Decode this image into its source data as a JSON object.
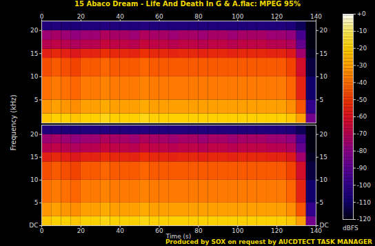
{
  "title": "15 Abaco Dream - Life And Death In G & A.flac: MPEG 95%",
  "caption": "Produced by SOX on request by AUCDTECT TASK MANAGER",
  "xlabel": "Time (s)",
  "ylabel": "Frequency (kHz)",
  "colorbar": {
    "label": "dBFS",
    "range": [
      -120,
      0
    ],
    "ticks": [
      {
        "value": 0,
        "label": "+0"
      },
      -10,
      -20,
      -30,
      -40,
      -50,
      -60,
      -70,
      -80,
      -90,
      -100,
      -110,
      -120
    ]
  },
  "chart_data": [
    {
      "type": "heatmap",
      "xlim": [
        0,
        140
      ],
      "xticks": [
        0,
        20,
        40,
        60,
        80,
        100,
        120,
        140
      ],
      "ylim": [
        0,
        22.05
      ],
      "yticks": [
        5,
        10,
        15,
        20
      ],
      "x_edges": [
        0,
        5,
        10,
        15,
        20,
        25,
        30,
        35,
        40,
        45,
        50,
        55,
        60,
        65,
        70,
        75,
        80,
        85,
        90,
        95,
        100,
        105,
        110,
        115,
        120,
        125,
        130,
        135,
        140
      ],
      "y_edges": [
        0,
        2,
        5,
        10,
        14,
        16,
        18,
        20,
        22.05
      ],
      "cells": [
        [
          -22,
          -20,
          -20,
          -22,
          -20,
          -20,
          -18,
          -20,
          -20,
          -20,
          -18,
          -20,
          -20,
          -20,
          -20,
          -20,
          -20,
          -20,
          -20,
          -20,
          -20,
          -20,
          -20,
          -20,
          -20,
          -22,
          -30,
          -85
        ],
        [
          -32,
          -30,
          -32,
          -34,
          -30,
          -30,
          -28,
          -30,
          -30,
          -30,
          -28,
          -30,
          -30,
          -30,
          -30,
          -30,
          -30,
          -30,
          -30,
          -30,
          -30,
          -30,
          -30,
          -30,
          -30,
          -34,
          -45,
          -100
        ],
        [
          -40,
          -38,
          -40,
          -42,
          -38,
          -38,
          -36,
          -38,
          -38,
          -38,
          -36,
          -38,
          -38,
          -38,
          -38,
          -38,
          -38,
          -38,
          -38,
          -38,
          -38,
          -38,
          -38,
          -38,
          -38,
          -42,
          -55,
          -110
        ],
        [
          -46,
          -44,
          -46,
          -48,
          -44,
          -44,
          -42,
          -44,
          -44,
          -44,
          -42,
          -44,
          -44,
          -44,
          -44,
          -44,
          -44,
          -44,
          -44,
          -44,
          -44,
          -44,
          -44,
          -44,
          -44,
          -48,
          -62,
          -115
        ],
        [
          -56,
          -54,
          -56,
          -58,
          -55,
          -55,
          -52,
          -54,
          -54,
          -55,
          -52,
          -54,
          -54,
          -55,
          -54,
          -54,
          -55,
          -54,
          -54,
          -55,
          -54,
          -54,
          -54,
          -55,
          -55,
          -58,
          -75,
          -118
        ],
        [
          -70,
          -68,
          -70,
          -72,
          -70,
          -70,
          -66,
          -68,
          -68,
          -70,
          -66,
          -68,
          -68,
          -70,
          -68,
          -68,
          -70,
          -68,
          -68,
          -70,
          -68,
          -68,
          -68,
          -70,
          -70,
          -72,
          -88,
          -120
        ],
        [
          -76,
          -74,
          -76,
          -78,
          -76,
          -76,
          -72,
          -74,
          -74,
          -76,
          -72,
          -74,
          -74,
          -76,
          -74,
          -74,
          -76,
          -74,
          -74,
          -76,
          -74,
          -74,
          -74,
          -76,
          -76,
          -78,
          -95,
          -120
        ],
        [
          -105,
          -105,
          -106,
          -106,
          -105,
          -105,
          -104,
          -105,
          -105,
          -105,
          -104,
          -105,
          -105,
          -105,
          -105,
          -105,
          -105,
          -105,
          -105,
          -105,
          -105,
          -105,
          -105,
          -105,
          -105,
          -106,
          -112,
          -120
        ]
      ]
    },
    {
      "type": "heatmap",
      "xlim": [
        0,
        140
      ],
      "xticks": [
        0,
        20,
        40,
        60,
        80,
        100,
        120,
        140
      ],
      "ylim": [
        0,
        22.05
      ],
      "yticks": [
        {
          "value": 0,
          "label": "DC"
        },
        5,
        10,
        15,
        20
      ],
      "x_edges": [
        0,
        5,
        10,
        15,
        20,
        25,
        30,
        35,
        40,
        45,
        50,
        55,
        60,
        65,
        70,
        75,
        80,
        85,
        90,
        95,
        100,
        105,
        110,
        115,
        120,
        125,
        130,
        135,
        140
      ],
      "y_edges": [
        0,
        2,
        5,
        10,
        14,
        16,
        18,
        20,
        22.05
      ],
      "cells": [
        [
          -22,
          -20,
          -20,
          -22,
          -20,
          -20,
          -18,
          -20,
          -20,
          -20,
          -18,
          -20,
          -20,
          -20,
          -20,
          -20,
          -20,
          -20,
          -20,
          -20,
          -20,
          -20,
          -20,
          -20,
          -20,
          -22,
          -30,
          -85
        ],
        [
          -32,
          -30,
          -32,
          -34,
          -30,
          -30,
          -28,
          -30,
          -30,
          -30,
          -28,
          -30,
          -30,
          -30,
          -30,
          -30,
          -30,
          -30,
          -30,
          -30,
          -30,
          -30,
          -30,
          -30,
          -30,
          -34,
          -45,
          -100
        ],
        [
          -40,
          -38,
          -40,
          -42,
          -38,
          -38,
          -36,
          -38,
          -38,
          -38,
          -36,
          -38,
          -38,
          -38,
          -38,
          -38,
          -38,
          -38,
          -38,
          -38,
          -38,
          -38,
          -38,
          -38,
          -38,
          -42,
          -55,
          -110
        ],
        [
          -46,
          -44,
          -46,
          -48,
          -44,
          -44,
          -42,
          -44,
          -44,
          -44,
          -42,
          -44,
          -44,
          -44,
          -44,
          -44,
          -44,
          -44,
          -44,
          -44,
          -44,
          -44,
          -44,
          -44,
          -44,
          -48,
          -62,
          -115
        ],
        [
          -56,
          -54,
          -56,
          -58,
          -55,
          -55,
          -52,
          -54,
          -54,
          -55,
          -52,
          -54,
          -54,
          -55,
          -54,
          -54,
          -55,
          -54,
          -54,
          -55,
          -54,
          -54,
          -54,
          -55,
          -55,
          -58,
          -75,
          -118
        ],
        [
          -70,
          -68,
          -70,
          -72,
          -70,
          -70,
          -66,
          -68,
          -68,
          -70,
          -66,
          -68,
          -68,
          -70,
          -68,
          -68,
          -70,
          -68,
          -68,
          -70,
          -68,
          -68,
          -68,
          -70,
          -70,
          -72,
          -88,
          -120
        ],
        [
          -76,
          -74,
          -76,
          -78,
          -76,
          -76,
          -72,
          -74,
          -74,
          -76,
          -72,
          -74,
          -74,
          -76,
          -74,
          -74,
          -76,
          -74,
          -74,
          -76,
          -74,
          -74,
          -74,
          -76,
          -76,
          -78,
          -95,
          -120
        ],
        [
          -105,
          -105,
          -106,
          -106,
          -105,
          -105,
          -104,
          -105,
          -105,
          -105,
          -104,
          -105,
          -105,
          -105,
          -105,
          -105,
          -105,
          -105,
          -105,
          -105,
          -105,
          -105,
          -105,
          -105,
          -105,
          -106,
          -112,
          -120
        ]
      ]
    }
  ]
}
